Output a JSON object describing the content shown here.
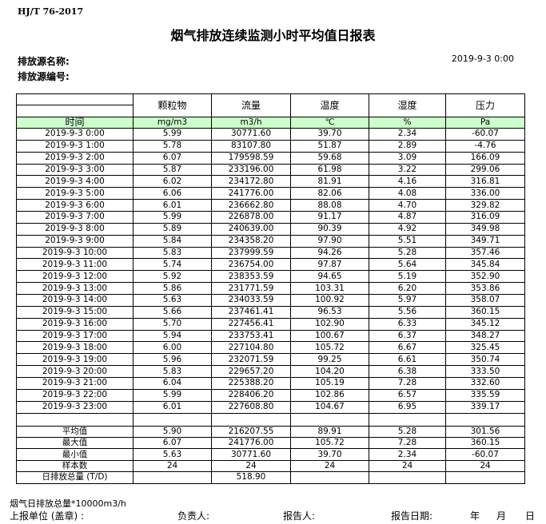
{
  "header": {
    "standard": "HJ/T  76-2017",
    "title": "烟气排放连续监测小时平均值日报表",
    "source_name_label": "排放源名称:",
    "source_id_label": "排放源编号:",
    "report_datetime": "2019-9-3 0:00"
  },
  "table": {
    "columns": [
      "颗粒物",
      "流量",
      "温度",
      "湿度",
      "压力"
    ],
    "time_label": "时间",
    "units": [
      "mg/m3",
      "m3/h",
      "℃",
      "%",
      "Pa"
    ],
    "rows": [
      [
        "2019-9-3 0:00",
        "5.99",
        "30771.60",
        "39.70",
        "2.34",
        "-60.07"
      ],
      [
        "2019-9-3 1:00",
        "5.78",
        "83107.80",
        "51.87",
        "2.89",
        "-4.76"
      ],
      [
        "2019-9-3 2:00",
        "6.07",
        "179598.59",
        "59.68",
        "3.09",
        "166.09"
      ],
      [
        "2019-9-3 3:00",
        "5.87",
        "233196.00",
        "61.98",
        "3.22",
        "299.06"
      ],
      [
        "2019-9-3 4:00",
        "6.02",
        "234172.80",
        "81.91",
        "4.16",
        "316.81"
      ],
      [
        "2019-9-3 5:00",
        "6.06",
        "241776.00",
        "82.06",
        "4.08",
        "336.00"
      ],
      [
        "2019-9-3 6:00",
        "6.01",
        "236662.80",
        "88.08",
        "4.70",
        "329.82"
      ],
      [
        "2019-9-3 7:00",
        "5.99",
        "226878.00",
        "91.17",
        "4.87",
        "316.09"
      ],
      [
        "2019-9-3 8:00",
        "5.89",
        "240639.00",
        "90.39",
        "4.92",
        "349.98"
      ],
      [
        "2019-9-3 9:00",
        "5.84",
        "234358.20",
        "97.90",
        "5.51",
        "349.71"
      ],
      [
        "2019-9-3 10:00",
        "5.83",
        "237999.59",
        "94.26",
        "5.28",
        "357.46"
      ],
      [
        "2019-9-3 11:00",
        "5.74",
        "236754.00",
        "97.87",
        "5.64",
        "345.84"
      ],
      [
        "2019-9-3 12:00",
        "5.92",
        "238353.59",
        "94.65",
        "5.19",
        "352.90"
      ],
      [
        "2019-9-3 13:00",
        "5.86",
        "231771.59",
        "103.31",
        "6.20",
        "353.86"
      ],
      [
        "2019-9-3 14:00",
        "5.63",
        "234033.59",
        "100.92",
        "5.97",
        "358.07"
      ],
      [
        "2019-9-3 15:00",
        "5.66",
        "237461.41",
        "96.53",
        "5.56",
        "360.15"
      ],
      [
        "2019-9-3 16:00",
        "5.70",
        "227456.41",
        "102.90",
        "6.33",
        "345.12"
      ],
      [
        "2019-9-3 17:00",
        "5.94",
        "233753.41",
        "100.67",
        "6.37",
        "348.27"
      ],
      [
        "2019-9-3 18:00",
        "6.00",
        "227104.80",
        "105.72",
        "6.67",
        "325.45"
      ],
      [
        "2019-9-3 19:00",
        "5.96",
        "232071.59",
        "99.25",
        "6.61",
        "350.74"
      ],
      [
        "2019-9-3 20:00",
        "5.83",
        "229657.20",
        "104.20",
        "6.38",
        "333.50"
      ],
      [
        "2019-9-3 21:00",
        "6.04",
        "225388.20",
        "105.19",
        "7.28",
        "332.60"
      ],
      [
        "2019-9-3 22:00",
        "5.99",
        "228406.20",
        "102.86",
        "6.57",
        "335.59"
      ],
      [
        "2019-9-3 23:00",
        "6.01",
        "227608.80",
        "104.67",
        "6.95",
        "339.17"
      ]
    ],
    "stats": [
      [
        "平均值",
        "5.90",
        "216207.55",
        "89.91",
        "5.28",
        "301.56"
      ],
      [
        "最大值",
        "6.07",
        "241776.00",
        "105.72",
        "7.28",
        "360.15"
      ],
      [
        "最小值",
        "5.63",
        "30771.60",
        "39.70",
        "2.34",
        "-60.07"
      ],
      [
        "样本数",
        "24",
        "24",
        "24",
        "24",
        "24"
      ],
      [
        "日排放总量 (T/D)",
        "",
        "518.90",
        "",
        "",
        ""
      ]
    ]
  },
  "footer": {
    "note": "烟气日排放总量*10000m3/h",
    "unit_label": "上报单位 (盖章) :",
    "responsible_label": "负责人:",
    "reporter_label": "报告人:",
    "date_label": "报告日期:",
    "year": "年",
    "month": "月",
    "day": "日"
  }
}
